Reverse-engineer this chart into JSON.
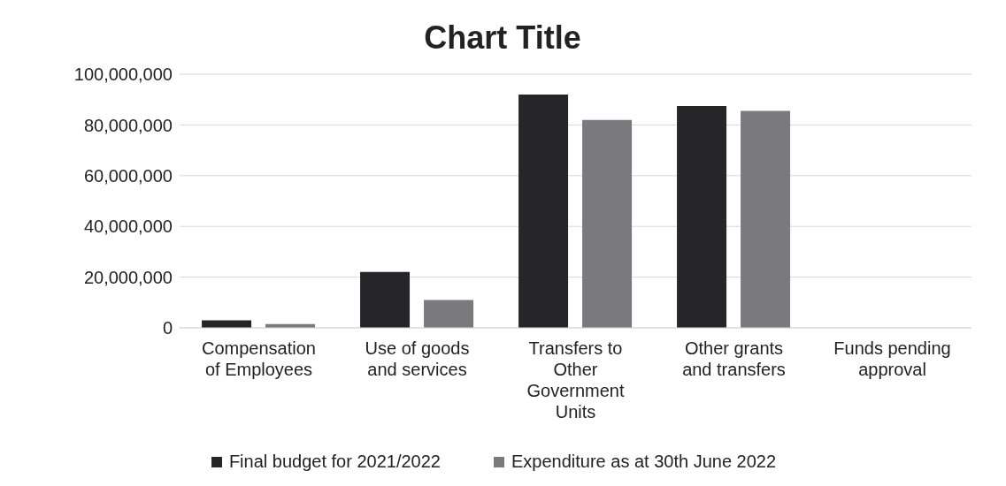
{
  "chart_data": {
    "type": "bar",
    "title": "Chart Title",
    "categories": [
      "Compensation of Employees",
      "Use of goods and services",
      "Transfers to Other Government Units",
      "Other grants and transfers",
      "Funds pending approval"
    ],
    "series": [
      {
        "name": "Final budget for 2021/2022",
        "color": "#262628",
        "values": [
          3000000,
          22000000,
          92000000,
          87500000,
          0
        ]
      },
      {
        "name": "Expenditure as at 30th June 2022",
        "color": "#7a7a7c",
        "values": [
          1500000,
          11000000,
          82000000,
          85500000,
          0
        ]
      }
    ],
    "ylim": [
      0,
      100000000
    ],
    "yticks": [
      0,
      {
        "value": 20000000,
        "label": "20,000,000"
      },
      {
        "value": 40000000,
        "label": "40,000,000"
      },
      {
        "value": 60000000,
        "label": "60,000,000"
      },
      {
        "value": 80000000,
        "label": "80,000,000"
      },
      {
        "value": 100000000,
        "label": "100,000,000"
      }
    ],
    "grid": "y",
    "legend": "bottom"
  }
}
